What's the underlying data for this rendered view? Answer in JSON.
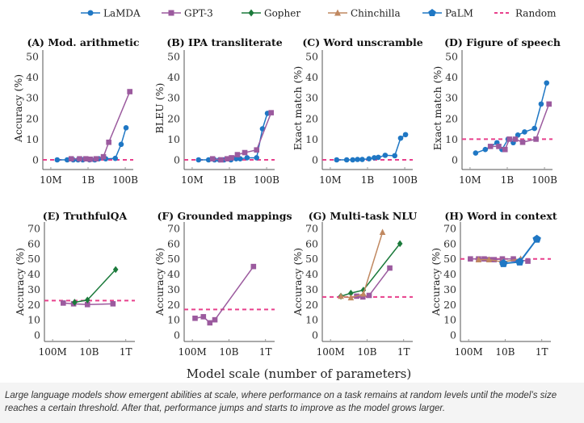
{
  "chart_data": [
    {
      "type": "line",
      "title": "(A) Mod. arithmetic",
      "ylabel": "Accuracy (%)",
      "xticks": [
        "10M",
        "1B",
        "100B"
      ],
      "ylim": [
        0,
        50
      ],
      "yticks": [
        0,
        10,
        20,
        30,
        40,
        50
      ],
      "random": 0,
      "series": [
        {
          "name": "LaMDA",
          "x": [
            22000000.0,
            76000000.0,
            160000000.0,
            290000000.0,
            520000000.0,
            1200000000.0,
            2300000000.0,
            3800000000.0,
            8900000000.0,
            29000000000.0,
            60000000000.0,
            110000000000.0
          ],
          "y": [
            0,
            0,
            0,
            0,
            0,
            0,
            0,
            0.5,
            0.5,
            0.7,
            7.5,
            15.5
          ]
        },
        {
          "name": "GPT-3",
          "x": [
            125000000.0,
            350000000.0,
            760000000.0,
            1300000000.0,
            2700000000.0,
            6700000000.0,
            13000000000.0,
            175000000000.0
          ],
          "y": [
            0.5,
            0.5,
            0.5,
            0.3,
            0.5,
            1.5,
            8.5,
            33
          ]
        }
      ]
    },
    {
      "type": "line",
      "title": "(B) IPA transliterate",
      "ylabel": "BLEU (%)",
      "xticks": [
        "10M",
        "1B",
        "100B"
      ],
      "ylim": [
        0,
        50
      ],
      "yticks": [
        0,
        10,
        20,
        30,
        40,
        50
      ],
      "random": 0,
      "series": [
        {
          "name": "LaMDA",
          "x": [
            22000000.0,
            76000000.0,
            160000000.0,
            290000000.0,
            520000000.0,
            1200000000.0,
            2300000000.0,
            3800000000.0,
            8900000000.0,
            29000000000.0,
            60000000000.0,
            110000000000.0
          ],
          "y": [
            0,
            0,
            0,
            0,
            0,
            0,
            0.5,
            0.5,
            1,
            1,
            15,
            22.5
          ]
        },
        {
          "name": "GPT-3",
          "x": [
            125000000.0,
            350000000.0,
            760000000.0,
            1300000000.0,
            2700000000.0,
            6700000000.0,
            29000000000.0,
            175000000000.0
          ],
          "y": [
            0.5,
            0,
            0.5,
            1,
            2.5,
            3.5,
            4.8,
            22.8
          ]
        }
      ]
    },
    {
      "type": "line",
      "title": "(C) Word unscramble",
      "ylabel": "Exact match (%)",
      "xticks": [
        "10M",
        "1B",
        "100B"
      ],
      "ylim": [
        0,
        50
      ],
      "yticks": [
        0,
        10,
        20,
        30,
        40,
        50
      ],
      "random": 0,
      "series": [
        {
          "name": "LaMDA",
          "x": [
            22000000.0,
            76000000.0,
            160000000.0,
            290000000.0,
            520000000.0,
            1200000000.0,
            2300000000.0,
            3800000000.0,
            8900000000.0,
            29000000000.0,
            60000000000.0,
            110000000000.0
          ],
          "y": [
            0,
            0,
            0,
            0.2,
            0.2,
            0.5,
            1,
            1.2,
            2.2,
            2,
            10.5,
            12.2
          ]
        }
      ]
    },
    {
      "type": "line",
      "title": "(D) Figure of speech",
      "ylabel": "Exact match (%)",
      "xticks": [
        "10M",
        "1B",
        "100B"
      ],
      "ylim": [
        0,
        50
      ],
      "yticks": [
        0,
        10,
        20,
        30,
        40,
        50
      ],
      "random": 10,
      "series": [
        {
          "name": "LaMDA",
          "x": [
            20000000.0,
            66000000.0,
            280000000.0,
            520000000.0,
            1100000000.0,
            2100000000.0,
            3700000000.0,
            8500000000.0,
            29000000000.0,
            66000000000.0,
            130000000000.0
          ],
          "y": [
            3.3,
            5,
            8.3,
            5,
            10,
            8.3,
            12,
            13.5,
            15.2,
            27,
            37.2
          ]
        },
        {
          "name": "GPT-3",
          "x": [
            125000000.0,
            350000000.0,
            760000000.0,
            1300000000.0,
            2700000000.0,
            6700000000.0,
            35000000000.0,
            175000000000.0
          ],
          "y": [
            6.5,
            6.5,
            5,
            10,
            10,
            8.5,
            10,
            27
          ]
        }
      ]
    },
    {
      "type": "line",
      "title": "(E) TruthfulQA",
      "ylabel": "Accuracy (%)",
      "xticks": [
        "100M",
        "10B",
        "1T"
      ],
      "ylim": [
        0,
        70
      ],
      "yticks": [
        0,
        10,
        20,
        30,
        40,
        50,
        60,
        70
      ],
      "random": 22.6,
      "series": [
        {
          "name": "GPT-3",
          "x": [
            380000000.0,
            1400000000.0,
            8000000000.0,
            200000000000.0
          ],
          "y": [
            21,
            20.5,
            20,
            20.5
          ]
        },
        {
          "name": "Gopher",
          "x": [
            1600000000.0,
            8000000000.0,
            280000000000.0
          ],
          "y": [
            21.5,
            23,
            43
          ]
        }
      ]
    },
    {
      "type": "line",
      "title": "(F) Grounded mappings",
      "ylabel": "Accuracy (%)",
      "xticks": [
        "100M",
        "10B",
        "1T"
      ],
      "ylim": [
        0,
        70
      ],
      "yticks": [
        0,
        10,
        20,
        30,
        40,
        50,
        60,
        70
      ],
      "random": 16.8,
      "series": [
        {
          "name": "GPT-3",
          "x": [
            140000000.0,
            400000000.0,
            900000000.0,
            1700000000.0,
            220000000000.0
          ],
          "y": [
            11,
            12,
            8,
            10,
            45
          ]
        }
      ]
    },
    {
      "type": "line",
      "title": "(G) Multi-task NLU",
      "ylabel": "Accuracy (%)",
      "xticks": [
        "100M",
        "10B",
        "1T"
      ],
      "ylim": [
        0,
        70
      ],
      "yticks": [
        0,
        10,
        20,
        30,
        40,
        50,
        60,
        70
      ],
      "random": 25,
      "series": [
        {
          "name": "GPT-3",
          "x": [
            2700000000.0,
            5900000000.0,
            13000000000.0,
            175000000000.0
          ],
          "y": [
            25.5,
            25,
            26,
            44
          ]
        },
        {
          "name": "Gopher",
          "x": [
            370000000.0,
            1300000000.0,
            6300000000.0,
            630000000000.0
          ],
          "y": [
            25.5,
            27.5,
            29.5,
            60
          ]
        },
        {
          "name": "Chinchilla",
          "x": [
            370000000.0,
            1300000000.0,
            6300000000.0,
            70000000000.0
          ],
          "y": [
            25.5,
            24.5,
            27,
            67.5
          ]
        }
      ]
    },
    {
      "type": "line",
      "title": "(H) Word in context",
      "ylabel": "Accuracy (%)",
      "xticks": [
        "100M",
        "10B",
        "1T"
      ],
      "ylim": [
        0,
        70
      ],
      "yticks": [
        0,
        10,
        20,
        30,
        40,
        50,
        60,
        70
      ],
      "random": 50,
      "series": [
        {
          "name": "GPT-3",
          "x": [
            125000000.0,
            350000000.0,
            710000000.0,
            1300000000.0,
            2500000000.0,
            7000000000.0,
            28000000000.0,
            175000000000.0
          ],
          "y": [
            50,
            50,
            50,
            49.5,
            49.5,
            50,
            50,
            48.5
          ]
        },
        {
          "name": "Chinchilla",
          "x": [
            350000000.0,
            1300000000.0,
            7000000000.0,
            70000000000.0
          ],
          "y": [
            49.5,
            49.5,
            48,
            50
          ]
        },
        {
          "name": "PaLM",
          "x": [
            8000000000.0,
            62000000000.0,
            540000000000.0
          ],
          "y": [
            47,
            48,
            63
          ]
        }
      ]
    }
  ],
  "legend": [
    {
      "name": "LaMDA",
      "color": "#1f77c4",
      "marker": "circle"
    },
    {
      "name": "GPT-3",
      "color": "#9b5a9e",
      "marker": "square"
    },
    {
      "name": "Gopher",
      "color": "#1b7a3b",
      "marker": "diamond"
    },
    {
      "name": "Chinchilla",
      "color": "#c08860",
      "marker": "triangle"
    },
    {
      "name": "PaLM",
      "color": "#1f77c4",
      "marker": "pentagon"
    },
    {
      "name": "Random",
      "color": "#e8408c",
      "marker": "dashed"
    }
  ],
  "xlabel": "Model scale (number of parameters)",
  "caption": "Large language models show emergent abilities at scale, where performance on a task remains at random levels until the model’s size reaches a certain threshold. After that, performance jumps and starts to improve as the model grows larger."
}
